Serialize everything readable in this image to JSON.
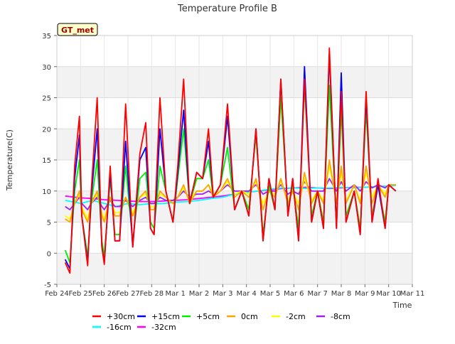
{
  "chart_data": {
    "type": "line",
    "title": "Temperature Profile B",
    "xlabel": "Time",
    "ylabel": "Temperature(C)",
    "annotation": "GT_met",
    "ylim": [
      -5,
      35
    ],
    "yticks": [
      -5,
      0,
      5,
      10,
      15,
      20,
      25,
      30,
      35
    ],
    "xlim": [
      0,
      15
    ],
    "xticks": [
      {
        "x": 0,
        "label": "Feb 24"
      },
      {
        "x": 1,
        "label": "Feb 25"
      },
      {
        "x": 2,
        "label": "Feb 26"
      },
      {
        "x": 3,
        "label": "Feb 27"
      },
      {
        "x": 4,
        "label": "Feb 28"
      },
      {
        "x": 5,
        "label": "Mar 1"
      },
      {
        "x": 6,
        "label": "Mar 2"
      },
      {
        "x": 7,
        "label": "Mar 3"
      },
      {
        "x": 8,
        "label": "Mar 4"
      },
      {
        "x": 9,
        "label": "Mar 5"
      },
      {
        "x": 10,
        "label": "Mar 6"
      },
      {
        "x": 11,
        "label": "Mar 7"
      },
      {
        "x": 12,
        "label": "Mar 8"
      },
      {
        "x": 13,
        "label": "Mar 9"
      },
      {
        "x": 14,
        "label": "Mar 10"
      },
      {
        "x": 15,
        "label": "Mar 11"
      }
    ],
    "grid": true,
    "band_shading": true,
    "legend_position": "bottom",
    "series": [
      {
        "name": "+30cm",
        "color": "#ff0000",
        "x": [
          0.35,
          0.55,
          0.75,
          0.95,
          1.05,
          1.3,
          1.45,
          1.7,
          1.9,
          2.0,
          2.25,
          2.45,
          2.65,
          2.9,
          3.2,
          3.5,
          3.75,
          3.95,
          4.1,
          4.35,
          4.6,
          4.9,
          5.1,
          5.35,
          5.6,
          5.9,
          6.15,
          6.4,
          6.6,
          6.9,
          7.2,
          7.5,
          7.8,
          8.1,
          8.4,
          8.7,
          8.95,
          9.2,
          9.45,
          9.75,
          9.95,
          10.2,
          10.45,
          10.75,
          11.0,
          11.25,
          11.5,
          11.8,
          12.0,
          12.2,
          12.55,
          12.8,
          13.05,
          13.3,
          13.55,
          13.85,
          14.0,
          14.3
        ],
        "y": [
          -1.5,
          -3.2,
          14,
          22,
          6,
          -2,
          10,
          25,
          1,
          -1.8,
          14,
          2,
          2,
          24,
          1,
          16,
          21,
          4,
          3,
          25,
          10,
          5,
          14,
          28,
          8,
          13,
          12,
          20,
          9,
          11,
          24,
          7,
          10,
          6,
          20,
          2,
          12,
          7,
          28,
          6,
          12,
          2,
          28,
          5,
          10,
          4,
          33,
          4,
          26,
          5,
          10,
          3,
          26,
          5,
          12,
          4,
          11,
          10
        ]
      },
      {
        "name": "+15cm",
        "color": "#0000ff",
        "x": [
          0.35,
          0.55,
          0.75,
          0.95,
          1.05,
          1.3,
          1.45,
          1.7,
          1.9,
          2.0,
          2.25,
          2.45,
          2.65,
          2.9,
          3.2,
          3.5,
          3.75,
          3.95,
          4.1,
          4.35,
          4.6,
          4.9,
          5.1,
          5.35,
          5.6,
          5.9,
          6.15,
          6.4,
          6.6,
          6.9,
          7.2,
          7.5,
          7.8,
          8.1,
          8.4,
          8.7,
          8.95,
          9.2,
          9.45,
          9.75,
          9.95,
          10.2,
          10.45,
          10.75,
          11.0,
          11.25,
          11.5,
          11.8,
          12.0,
          12.2,
          12.55,
          12.8,
          13.05,
          13.3,
          13.55,
          13.85,
          14.0,
          14.3
        ],
        "y": [
          -1,
          -2.5,
          12,
          19,
          6,
          -1.5,
          9,
          20,
          1,
          -1.5,
          13,
          2,
          2,
          18,
          1,
          15,
          17,
          4,
          3,
          20,
          10,
          5,
          13,
          23,
          8,
          13,
          12,
          18,
          9,
          11,
          22,
          7,
          10,
          6,
          20,
          2,
          12,
          7,
          28,
          6,
          12,
          2,
          30,
          5,
          10,
          4,
          32,
          4,
          29,
          5,
          10,
          3,
          25,
          5,
          11,
          4,
          11,
          10
        ]
      },
      {
        "name": "+5cm",
        "color": "#00ee00",
        "x": [
          0.35,
          0.55,
          0.75,
          0.95,
          1.05,
          1.3,
          1.45,
          1.7,
          1.9,
          2.0,
          2.25,
          2.45,
          2.65,
          2.9,
          3.2,
          3.5,
          3.75,
          3.95,
          4.1,
          4.35,
          4.6,
          4.9,
          5.1,
          5.35,
          5.6,
          5.9,
          6.15,
          6.4,
          6.6,
          6.9,
          7.2,
          7.5,
          7.8,
          8.1,
          8.4,
          8.7,
          8.95,
          9.2,
          9.45,
          9.75,
          9.95,
          10.2,
          10.45,
          10.75,
          11.0,
          11.25,
          11.5,
          11.8,
          12.0,
          12.2,
          12.55,
          12.8,
          13.05,
          13.3,
          13.55,
          13.85,
          14.0,
          14.3
        ],
        "y": [
          0.5,
          -1.5,
          10,
          15,
          6,
          -0.5,
          8,
          15,
          2,
          -0.5,
          12,
          3,
          3,
          14,
          2,
          12,
          13,
          5,
          4,
          14,
          10,
          5,
          12,
          20,
          8,
          12,
          12,
          15,
          9,
          11,
          17,
          7,
          10,
          7,
          19,
          3,
          11,
          7,
          25,
          7,
          11,
          4,
          27,
          6,
          10,
          5,
          27,
          5,
          23,
          6,
          10,
          4,
          23,
          6,
          11,
          5,
          11,
          10
        ]
      },
      {
        "name": "0cm",
        "color": "#ffa500",
        "x": [
          0.35,
          0.55,
          0.75,
          0.95,
          1.05,
          1.3,
          1.45,
          1.7,
          1.9,
          2.0,
          2.25,
          2.45,
          2.65,
          2.9,
          3.2,
          3.5,
          3.75,
          3.95,
          4.1,
          4.35,
          4.6,
          4.9,
          5.1,
          5.35,
          5.6,
          5.9,
          6.15,
          6.4,
          6.6,
          6.9,
          7.2,
          7.5,
          7.8,
          8.1,
          8.4,
          8.7,
          8.95,
          9.2,
          9.45,
          9.75,
          9.95,
          10.2,
          10.45,
          10.75,
          11.0,
          11.25,
          11.5,
          11.8,
          12.0,
          12.2,
          12.55,
          12.8,
          13.05,
          13.3,
          13.55,
          13.85,
          14.0,
          14.3
        ],
        "y": [
          5.5,
          5,
          8,
          10,
          7,
          5,
          8,
          10,
          6,
          5,
          9,
          6,
          6,
          9,
          6,
          9,
          10,
          7,
          7,
          10,
          9,
          8,
          9,
          11,
          8,
          10,
          10,
          11,
          9,
          10,
          12,
          9,
          10,
          9,
          12,
          7,
          10,
          9,
          12,
          8,
          10,
          7,
          13,
          8,
          10,
          8,
          15,
          8,
          14,
          8,
          11,
          8,
          14,
          8,
          11,
          9,
          11,
          11
        ]
      },
      {
        "name": "-2cm",
        "color": "#ffff00",
        "x": [
          0.35,
          0.55,
          0.75,
          0.95,
          1.05,
          1.3,
          1.45,
          1.7,
          1.9,
          2.0,
          2.25,
          2.45,
          2.65,
          2.9,
          3.2,
          3.5,
          3.75,
          3.95,
          4.1,
          4.35,
          4.6,
          4.9,
          5.1,
          5.35,
          5.6,
          5.9,
          6.15,
          6.4,
          6.6,
          6.9,
          7.2,
          7.5,
          7.8,
          8.1,
          8.4,
          8.7,
          8.95,
          9.2,
          9.45,
          9.75,
          9.95,
          10.2,
          10.45,
          10.75,
          11.0,
          11.25,
          11.5,
          11.8,
          12.0,
          12.2,
          12.55,
          12.8,
          13.05,
          13.3,
          13.55,
          13.85,
          14.0,
          14.3
        ],
        "y": [
          6,
          5.5,
          8,
          9.5,
          7.5,
          5.5,
          8,
          9.5,
          6.5,
          5.5,
          9,
          6.5,
          6.5,
          9,
          6.5,
          9,
          9.5,
          7.5,
          7.5,
          9.5,
          9,
          8,
          9,
          10.5,
          8.5,
          10,
          10,
          11,
          9.5,
          10,
          11.5,
          9.5,
          10,
          9.5,
          11.5,
          8,
          10,
          9.5,
          11.5,
          8.5,
          10,
          8,
          12,
          8.5,
          10,
          8.5,
          14,
          8.5,
          13,
          8.5,
          11,
          8.5,
          13,
          9,
          11,
          9.5,
          11,
          11
        ]
      },
      {
        "name": "-8cm",
        "color": "#a020f0",
        "x": [
          0.35,
          0.55,
          0.75,
          0.95,
          1.05,
          1.3,
          1.45,
          1.7,
          1.9,
          2.0,
          2.25,
          2.45,
          2.65,
          2.9,
          3.2,
          3.5,
          3.75,
          3.95,
          4.1,
          4.35,
          4.6,
          4.9,
          5.1,
          5.35,
          5.6,
          5.9,
          6.15,
          6.4,
          6.6,
          6.9,
          7.2,
          7.5,
          7.8,
          8.1,
          8.4,
          8.7,
          8.95,
          9.2,
          9.45,
          9.75,
          9.95,
          10.2,
          10.45,
          10.75,
          11.0,
          11.25,
          11.5,
          11.8,
          12.0,
          12.2,
          12.55,
          12.8,
          13.05,
          13.3,
          13.55,
          13.85,
          14.0,
          14.3
        ],
        "y": [
          7.5,
          7,
          8,
          9,
          8,
          7,
          8,
          9,
          7.5,
          7,
          8.5,
          7.5,
          7.5,
          8.5,
          7.5,
          8.5,
          9,
          8,
          8,
          9,
          8.5,
          8.5,
          9,
          10,
          9,
          9.5,
          9.5,
          10,
          9.5,
          10,
          11,
          10,
          10,
          10,
          11,
          9.5,
          10,
          10,
          11,
          9.5,
          10,
          9.5,
          11.5,
          10,
          10,
          10,
          12,
          10,
          11.5,
          10,
          11,
          10,
          11.5,
          10.5,
          11,
          10.5,
          11,
          11
        ]
      },
      {
        "name": "-16cm",
        "color": "#00ffff",
        "x": [
          0.35,
          1.0,
          1.5,
          2.0,
          2.5,
          3.0,
          3.5,
          4.0,
          4.5,
          5.0,
          5.5,
          6.0,
          6.5,
          7.0,
          7.5,
          8.0,
          8.5,
          9.0,
          9.5,
          10.0,
          10.5,
          11.0,
          11.5,
          12.0,
          12.5,
          13.0,
          13.5,
          14.0,
          14.3
        ],
        "y": [
          8.5,
          8,
          8.5,
          8,
          7.5,
          8,
          7.8,
          8,
          8,
          8.2,
          8.3,
          8.5,
          8.8,
          9,
          9.5,
          9.8,
          10,
          10.3,
          10.5,
          10.5,
          10.4,
          10.5,
          10.5,
          10.6,
          10.5,
          10.6,
          10.7,
          10.8,
          10.9
        ]
      },
      {
        "name": "-32cm",
        "color": "#ff00ff",
        "x": [
          0.35,
          1.0,
          1.5,
          2.0,
          2.5,
          3.0,
          3.5,
          4.0,
          4.5,
          5.0,
          5.5,
          6.0,
          6.5,
          7.0,
          7.5,
          8.0,
          8.5,
          9.0,
          9.5,
          10.0,
          10.5,
          11.0,
          11.5,
          12.0,
          12.5,
          13.0,
          13.5,
          14.0,
          14.3
        ],
        "y": [
          9.2,
          8.9,
          8.8,
          8.6,
          8.5,
          8.4,
          8.3,
          8.3,
          8.4,
          8.5,
          8.6,
          8.8,
          9,
          9.2,
          9.5,
          9.8,
          10,
          10.2,
          10.4,
          10.5,
          10.6,
          10.5,
          10.4,
          10.5,
          10.6,
          10.6,
          10.7,
          10.8,
          10.9
        ]
      }
    ]
  }
}
